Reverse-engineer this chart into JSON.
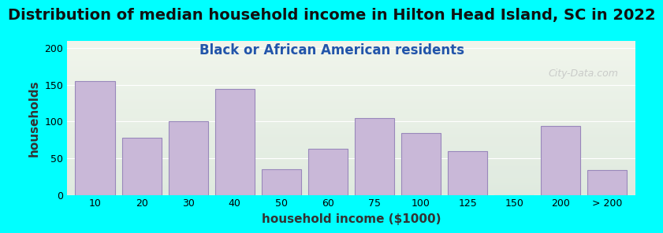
{
  "title": "Distribution of median household income in Hilton Head Island, SC in 2022",
  "subtitle": "Black or African American residents",
  "xlabel": "household income ($1000)",
  "ylabel": "households",
  "background_outer": "#00FFFF",
  "background_inner_top": "#f0f5e8",
  "background_inner_bottom": "#e8f0e8",
  "bar_color": "#c9b8d8",
  "bar_edge_color": "#9988bb",
  "categories": [
    "10",
    "20",
    "30",
    "40",
    "50",
    "60",
    "75",
    "100",
    "125",
    "150",
    "200",
    "> 200"
  ],
  "values": [
    155,
    78,
    100,
    144,
    35,
    63,
    105,
    84,
    60,
    0,
    94,
    34
  ],
  "ylim": [
    0,
    210
  ],
  "yticks": [
    0,
    50,
    100,
    150,
    200
  ],
  "title_fontsize": 14,
  "subtitle_fontsize": 12,
  "axis_label_fontsize": 11,
  "tick_fontsize": 9,
  "watermark": "City-Data.com"
}
